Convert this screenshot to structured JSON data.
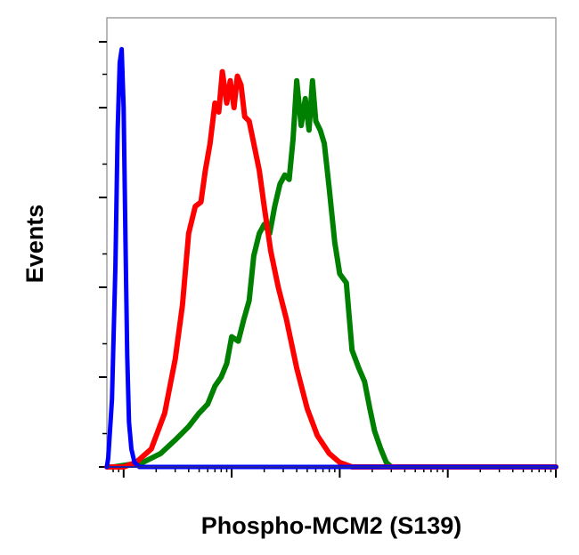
{
  "chart_data": {
    "type": "line",
    "title": "",
    "xlabel": "Phospho-MCM2 (S139)",
    "ylabel": "Events",
    "xscale": "log",
    "xlim": [
      0.7,
      10000
    ],
    "ylim": [
      0,
      1
    ],
    "grid": false,
    "legend": "none",
    "x_major_ticks": [
      1,
      10,
      100,
      1000,
      10000
    ],
    "y_tick_count": 5,
    "series": [
      {
        "color": "#0000ff",
        "x": [
          0.68,
          0.72,
          0.78,
          0.84,
          0.88,
          0.92,
          0.96,
          1.0,
          1.04,
          1.08,
          1.12,
          1.18,
          1.26,
          1.4,
          1.6,
          10000
        ],
        "y": [
          0.0,
          0.02,
          0.15,
          0.45,
          0.75,
          0.9,
          0.93,
          0.8,
          0.5,
          0.25,
          0.1,
          0.04,
          0.01,
          0.0,
          0.0,
          0.0
        ]
      },
      {
        "color": "#ff0000",
        "x": [
          0.7,
          1.0,
          1.3,
          1.8,
          2.4,
          3.0,
          3.5,
          4.0,
          4.6,
          5.2,
          5.7,
          6.3,
          7.0,
          7.6,
          8.2,
          9.0,
          9.7,
          10.5,
          11.3,
          12.2,
          13.2,
          14.5,
          16.0,
          18.0,
          20.0,
          23.0,
          27.0,
          32.0,
          40.0,
          50.0,
          62.0,
          80.0,
          100.0,
          130.0,
          160.0,
          200.0,
          10000
        ],
        "y": [
          0.0,
          0.0,
          0.01,
          0.04,
          0.12,
          0.24,
          0.36,
          0.52,
          0.58,
          0.59,
          0.66,
          0.72,
          0.81,
          0.79,
          0.88,
          0.81,
          0.86,
          0.8,
          0.87,
          0.85,
          0.78,
          0.77,
          0.72,
          0.66,
          0.58,
          0.48,
          0.4,
          0.33,
          0.22,
          0.13,
          0.07,
          0.03,
          0.01,
          0.0,
          0.0,
          0.0,
          0.0
        ]
      },
      {
        "color": "#008000",
        "x": [
          0.8,
          1.5,
          2.2,
          3.0,
          4.0,
          5.0,
          6.0,
          7.0,
          8.0,
          9.0,
          10.0,
          11.5,
          13.0,
          14.5,
          16.0,
          18.0,
          20.0,
          22.5,
          25.0,
          28.0,
          31.0,
          34.0,
          37.0,
          40.0,
          44.0,
          48.0,
          52.0,
          56.0,
          60.0,
          66.0,
          72.0,
          80.0,
          90.0,
          100.0,
          115.0,
          130.0,
          150.0,
          170.0,
          190.0,
          210.0,
          240.0,
          270.0,
          300.0,
          340.0,
          380.0,
          430.0,
          500.0,
          10000
        ],
        "y": [
          0.0,
          0.01,
          0.03,
          0.06,
          0.09,
          0.12,
          0.14,
          0.18,
          0.2,
          0.23,
          0.29,
          0.28,
          0.33,
          0.37,
          0.47,
          0.52,
          0.54,
          0.52,
          0.58,
          0.63,
          0.65,
          0.64,
          0.73,
          0.86,
          0.76,
          0.82,
          0.75,
          0.86,
          0.77,
          0.75,
          0.72,
          0.62,
          0.5,
          0.43,
          0.41,
          0.26,
          0.22,
          0.19,
          0.13,
          0.08,
          0.04,
          0.01,
          0.0,
          0.0,
          0.0,
          0.0,
          0.0,
          0.0
        ]
      }
    ]
  }
}
